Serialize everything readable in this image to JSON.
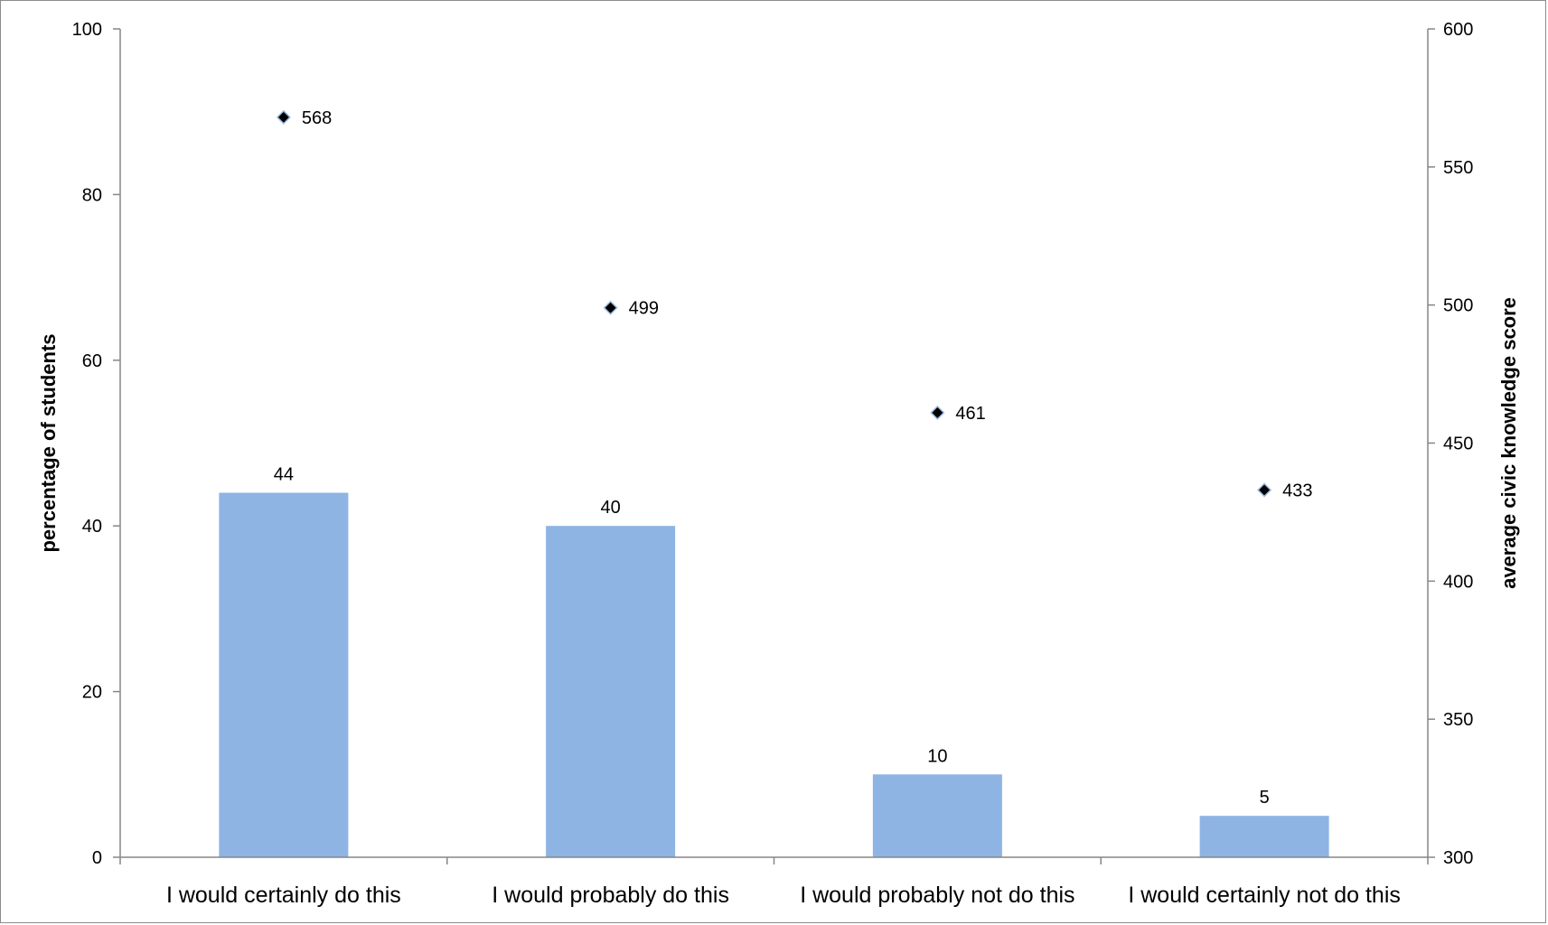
{
  "chart_data": {
    "type": "bar",
    "categories": [
      "I would certainly do this",
      "I would probably do this",
      "I would probably not do this",
      "I would certainly not do this"
    ],
    "series": [
      {
        "type": "bar",
        "axis": "left",
        "values": [
          44,
          40,
          10,
          5
        ],
        "color": "#8eb4e3"
      },
      {
        "type": "scatter",
        "axis": "right",
        "marker": "diamond",
        "values": [
          568,
          499,
          461,
          433
        ],
        "color": "#000000"
      }
    ],
    "ylabel": "percentage of students",
    "ylabel_right": "average civic knowledge score",
    "ylim": [
      0,
      100
    ],
    "ylim_right": [
      300,
      600
    ],
    "yticks": [
      0,
      20,
      40,
      60,
      80,
      100
    ],
    "yticks_right": [
      300,
      350,
      400,
      450,
      500,
      550,
      600
    ],
    "grid": false,
    "legend": "none"
  }
}
